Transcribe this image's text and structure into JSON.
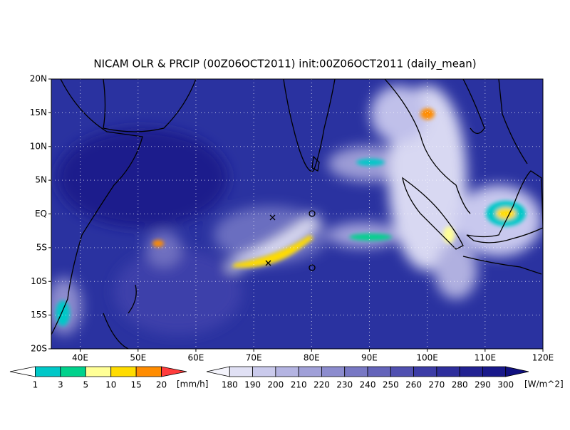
{
  "title": "NICAM OLR & PRCIP (00Z06OCT2011) init:00Z06OCT2011 (daily_mean)",
  "map": {
    "lonlim": [
      35,
      120
    ],
    "latlim": [
      -20,
      20
    ],
    "lon_ticks": [
      {
        "value": 40,
        "label": "40E"
      },
      {
        "value": 50,
        "label": "50E"
      },
      {
        "value": 60,
        "label": "60E"
      },
      {
        "value": 70,
        "label": "70E"
      },
      {
        "value": 80,
        "label": "80E"
      },
      {
        "value": 90,
        "label": "90E"
      },
      {
        "value": 100,
        "label": "100E"
      },
      {
        "value": 110,
        "label": "110E"
      },
      {
        "value": 120,
        "label": "120E"
      }
    ],
    "lat_ticks": [
      {
        "value": 20,
        "label": "20N"
      },
      {
        "value": 15,
        "label": "15N"
      },
      {
        "value": 10,
        "label": "10N"
      },
      {
        "value": 5,
        "label": "5N"
      },
      {
        "value": 0,
        "label": "EQ"
      },
      {
        "value": -5,
        "label": "5S"
      },
      {
        "value": -10,
        "label": "10S"
      },
      {
        "value": -15,
        "label": "15S"
      },
      {
        "value": -20,
        "label": "20S"
      }
    ]
  },
  "precip_bar": {
    "unit": "[mm/h]",
    "labels": [
      1,
      3,
      5,
      10,
      15,
      20
    ],
    "colors": [
      "#ffffff",
      "#00c8c8",
      "#00d28c",
      "#ffff96",
      "#ffdc00",
      "#ff8c00",
      "#ff3c3c"
    ]
  },
  "olr_bar": {
    "unit": "[W/m^2]",
    "labels": [
      180,
      190,
      200,
      210,
      220,
      230,
      240,
      250,
      260,
      270,
      280,
      290,
      300
    ],
    "colors": [
      "#f4f4fc",
      "#e0e0f4",
      "#cacaec",
      "#b4b4e2",
      "#a0a0d8",
      "#8c8cce",
      "#7878c4",
      "#6464ba",
      "#5050b0",
      "#3c3ca6",
      "#2e2e9c",
      "#222292",
      "#18188a",
      "#101080"
    ]
  }
}
